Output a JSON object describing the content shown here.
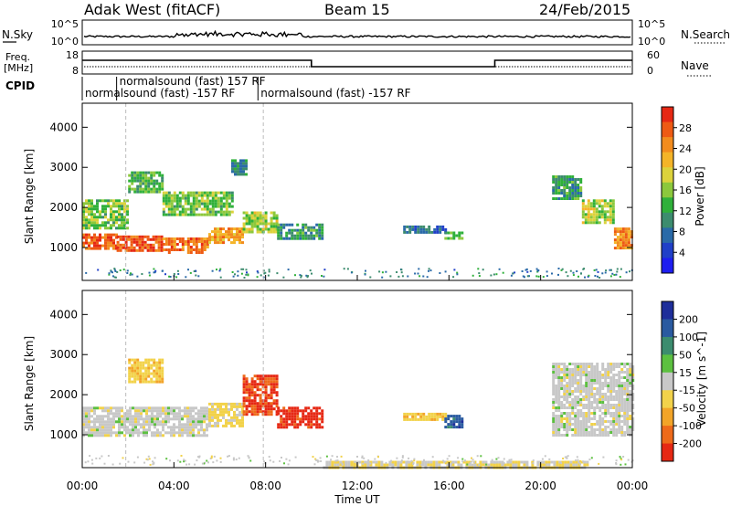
{
  "header": {
    "site": "Adak West (fitACF)",
    "beam": "Beam 15",
    "date": "24/Feb/2015"
  },
  "nsky_panel": {
    "left_label": "N.Sky",
    "right_label": "N.Search",
    "left_ticks": [
      "10^5",
      "10^0"
    ],
    "right_ticks": [
      "10^5",
      "10^0"
    ]
  },
  "freq_panel": {
    "left_label_1": "Freq.",
    "left_label_2": "[MHz]",
    "right_label": "Nave",
    "left_ticks": [
      "18",
      "8"
    ],
    "right_ticks": [
      "60",
      "0"
    ],
    "steps": [
      {
        "start": "00:00",
        "end": "10:00",
        "level": "high"
      },
      {
        "start": "10:00",
        "end": "18:00",
        "level": "low"
      },
      {
        "start": "18:00",
        "end": "24:00",
        "level": "high"
      }
    ]
  },
  "cpid_panel": {
    "label": "CPID",
    "modes": [
      {
        "text": "normalsound (fast) -157 RF",
        "start": "00:00",
        "row": 2
      },
      {
        "text": "normalsound (fast) 157 RF",
        "start": "01:30",
        "row": 1
      },
      {
        "text": "normalsound (fast) -157 RF",
        "start": "07:40",
        "row": 2
      }
    ]
  },
  "power_panel": {
    "ylabel": "Slant Range [km]",
    "yticks": [
      "1000",
      "2000",
      "3000",
      "4000"
    ],
    "colorbar": {
      "title": "Power [dB]",
      "ticks": [
        "4",
        "8",
        "12",
        "16",
        "20",
        "24",
        "28"
      ],
      "colors": [
        "#1e1ef0",
        "#2040c8",
        "#2a6aa8",
        "#3c8c6e",
        "#2fb03a",
        "#8cc83c",
        "#dcd23c",
        "#f4b428",
        "#f28c1e",
        "#ee5a14",
        "#e62814"
      ]
    }
  },
  "velocity_panel": {
    "ylabel": "Slant Range [km]",
    "yticks": [
      "1000",
      "2000",
      "3000",
      "4000"
    ],
    "colorbar": {
      "title": "Velocity [m s^-1]",
      "ticks": [
        "200",
        "100",
        "50",
        "15",
        "-15",
        "-50",
        "-100",
        "-200"
      ],
      "colors": [
        "#1e2e9a",
        "#2a5aa0",
        "#3c8c6e",
        "#5cc040",
        "#c8c8c8",
        "#f2d24a",
        "#f2a428",
        "#ee6a1a",
        "#e62814"
      ]
    }
  },
  "xaxis": {
    "label": "Time UT",
    "ticks": [
      "00:00",
      "04:00",
      "08:00",
      "12:00",
      "16:00",
      "20:00",
      "00:00"
    ]
  },
  "chart_data": [
    {
      "type": "heatmap",
      "title": "",
      "xlabel": "",
      "ylabel": "Slant Range [km]",
      "xlim": [
        0,
        24
      ],
      "ylim": [
        180,
        4600
      ],
      "colorbar_label": "Power [dB]",
      "clim": [
        0,
        30
      ],
      "regions": [
        {
          "t0": 0.0,
          "t1": 1.5,
          "r0": 1000,
          "r1": 1350,
          "value": 27
        },
        {
          "t0": 1.5,
          "t1": 3.5,
          "r0": 950,
          "r1": 1300,
          "value": 27
        },
        {
          "t0": 3.5,
          "t1": 5.5,
          "r0": 900,
          "r1": 1250,
          "value": 26
        },
        {
          "t0": 5.5,
          "t1": 7.0,
          "r0": 1150,
          "r1": 1500,
          "value": 22
        },
        {
          "t0": 7.0,
          "t1": 8.5,
          "r0": 1400,
          "r1": 1900,
          "value": 16
        },
        {
          "t0": 8.5,
          "t1": 10.5,
          "r0": 1200,
          "r1": 1600,
          "value": 10
        },
        {
          "t0": 0.0,
          "t1": 2.0,
          "r0": 1500,
          "r1": 2200,
          "value": 14
        },
        {
          "t0": 2.0,
          "t1": 3.5,
          "r0": 2400,
          "r1": 2900,
          "value": 12
        },
        {
          "t0": 3.5,
          "t1": 6.5,
          "r0": 1800,
          "r1": 2400,
          "value": 14
        },
        {
          "t0": 6.5,
          "t1": 7.2,
          "r0": 2800,
          "r1": 3200,
          "value": 8
        },
        {
          "t0": 14.0,
          "t1": 15.8,
          "r0": 1350,
          "r1": 1550,
          "value": 6
        },
        {
          "t0": 15.8,
          "t1": 16.6,
          "r0": 1200,
          "r1": 1400,
          "value": 12
        },
        {
          "t0": 20.5,
          "t1": 21.8,
          "r0": 2200,
          "r1": 2800,
          "value": 10
        },
        {
          "t0": 21.8,
          "t1": 23.2,
          "r0": 1600,
          "r1": 2200,
          "value": 16
        },
        {
          "t0": 23.2,
          "t1": 24.0,
          "r0": 1000,
          "r1": 1500,
          "value": 24
        }
      ]
    },
    {
      "type": "heatmap",
      "title": "",
      "xlabel": "Time UT",
      "ylabel": "Slant Range [km]",
      "xlim": [
        0,
        24
      ],
      "ylim": [
        180,
        4600
      ],
      "colorbar_label": "Velocity [m s^-1]",
      "clim": [
        -200,
        200
      ],
      "regions": [
        {
          "t0": 0.0,
          "t1": 5.5,
          "r0": 950,
          "r1": 1700,
          "value": 0
        },
        {
          "t0": 5.5,
          "t1": 7.0,
          "r0": 1200,
          "r1": 1800,
          "value": -40
        },
        {
          "t0": 2.0,
          "t1": 3.5,
          "r0": 2300,
          "r1": 2900,
          "value": -60
        },
        {
          "t0": 7.0,
          "t1": 8.5,
          "r0": 1500,
          "r1": 2500,
          "value": -180
        },
        {
          "t0": 8.5,
          "t1": 10.5,
          "r0": 1200,
          "r1": 1700,
          "value": -200
        },
        {
          "t0": 14.0,
          "t1": 15.8,
          "r0": 1350,
          "r1": 1550,
          "value": -60
        },
        {
          "t0": 15.8,
          "t1": 16.6,
          "r0": 1200,
          "r1": 1500,
          "value": 150
        },
        {
          "t0": 20.5,
          "t1": 24.0,
          "r0": 1000,
          "r1": 2800,
          "value": 0
        },
        {
          "t0": 10.5,
          "t1": 22.0,
          "r0": 200,
          "r1": 350,
          "value": -30
        }
      ]
    }
  ]
}
